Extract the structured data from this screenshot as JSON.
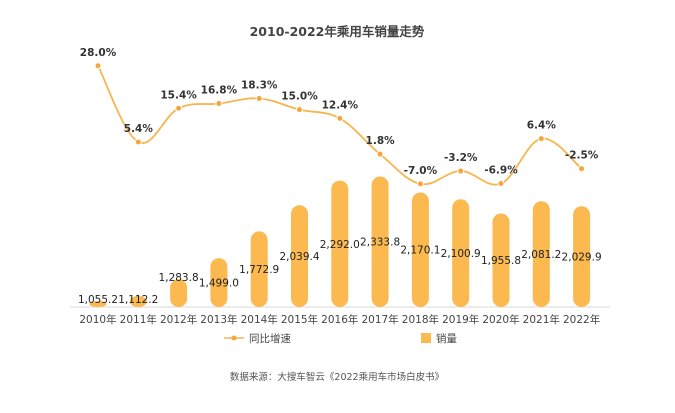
{
  "chart_data": {
    "type": "bar",
    "title": "2010-2022年乘用车销量走势",
    "categories": [
      "2010年",
      "2011年",
      "2012年",
      "2013年",
      "2014年",
      "2015年",
      "2016年",
      "2017年",
      "2018年",
      "2019年",
      "2020年",
      "2021年",
      "2022年"
    ],
    "series": [
      {
        "name": "销量",
        "type": "bar",
        "values": [
          1055.2,
          1112.2,
          1283.8,
          1499.0,
          1772.9,
          2039.4,
          2292.0,
          2333.8,
          2170.1,
          2100.9,
          1955.8,
          2081.2,
          2029.9
        ],
        "labels": [
          "1,055.2",
          "1,112.2",
          "1,283.8",
          "1,499.0",
          "1,772.9",
          "2,039.4",
          "2,292.0",
          "2,333.8",
          "2,170.1",
          "2,100.9",
          "1,955.8",
          "2,081.2",
          "2,029.9"
        ]
      },
      {
        "name": "同比增速",
        "type": "line",
        "values": [
          28.0,
          5.4,
          15.4,
          16.8,
          18.3,
          15.0,
          12.4,
          1.8,
          -7.0,
          -3.2,
          -6.9,
          6.4,
          -2.5
        ],
        "labels": [
          "28.0%",
          "5.4%",
          "15.4%",
          "16.8%",
          "18.3%",
          "15.0%",
          "12.4%",
          "1.8%",
          "-7.0%",
          "-3.2%",
          "-6.9%",
          "6.4%",
          "-2.5%"
        ]
      }
    ],
    "bar_ylim": [
      1000,
      2400
    ],
    "line_ylim": [
      -10,
      30
    ],
    "grid": false,
    "legend": "bottom-center",
    "colors": {
      "bar": "#FBB950",
      "line": "#F9B44D",
      "line_marker": "#F6A53A"
    }
  },
  "source_text": "数据来源：大搜车智云《2022乘用车市场白皮书》"
}
